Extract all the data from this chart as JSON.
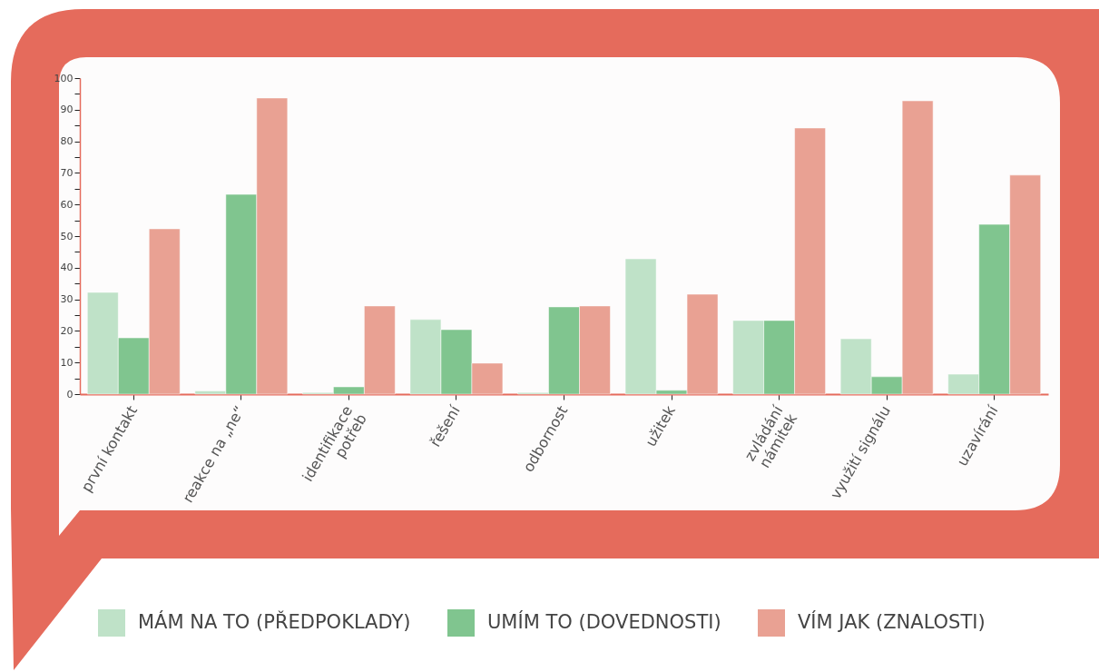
{
  "chart_data": {
    "type": "bar",
    "categories": [
      "první kontakt",
      "reakce na „ne“",
      "identifikace\npotřeb",
      "řešení",
      "odbornost",
      "užitek",
      "zvládání\nnámitek",
      "využití signálu",
      "uzavírání"
    ],
    "series": [
      {
        "name": "MÁM NA TO (PŘEDPOKLADY)",
        "color": "#bfe2c8",
        "values": [
          32.2,
          1,
          0.5,
          23.6,
          0.5,
          42.8,
          23.3,
          17.5,
          6.3
        ]
      },
      {
        "name": "UMÍM TO (DOVEDNOSTI)",
        "color": "#80c58f",
        "values": [
          17.8,
          63.2,
          2.3,
          20.4,
          27.6,
          1.2,
          23.3,
          5.5,
          53.7
        ]
      },
      {
        "name": "VÍM JAK (ZNALOSTI)",
        "color": "#e9a193",
        "values": [
          52.3,
          93.7,
          27.9,
          9.8,
          27.9,
          31.6,
          84.2,
          92.8,
          69.3
        ]
      }
    ],
    "ylim": [
      0,
      100
    ],
    "yticks": [
      0,
      {
        "value": 5,
        "label": null
      },
      10,
      {
        "value": 15,
        "label": null
      },
      20,
      {
        "value": 25,
        "label": null
      },
      30,
      {
        "value": 35,
        "label": null
      },
      40,
      {
        "value": 45,
        "label": null
      },
      50,
      {
        "value": 55,
        "label": null
      },
      60,
      {
        "value": 65,
        "label": null
      },
      70,
      {
        "value": 75,
        "label": null
      },
      80,
      {
        "value": 85,
        "label": null
      },
      90,
      {
        "value": 95,
        "label": null
      },
      100
    ],
    "grid": false,
    "legend": "bottom"
  }
}
